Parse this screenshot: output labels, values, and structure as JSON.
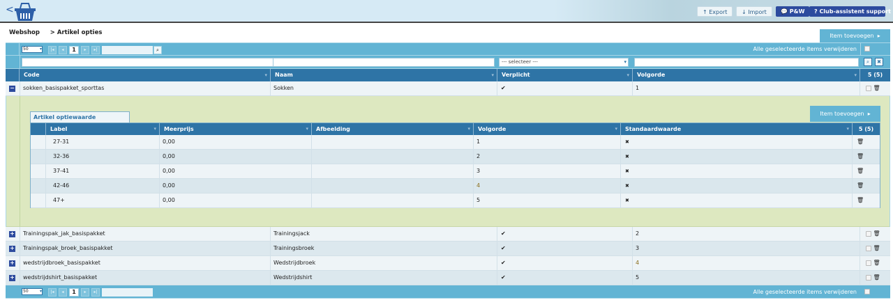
{
  "header": {
    "back": "<",
    "export": "Export",
    "import": "Import",
    "pw": "P&W",
    "support": "Club-assistent support"
  },
  "breadcrumb": {
    "root": "Webshop",
    "sep": ">",
    "current": "Artikel opties"
  },
  "add_item": "Item toevoegen",
  "toolbar": {
    "page_size": "50",
    "page": "1",
    "delete_selected": "Alle geselecteerde items verwijderen"
  },
  "filter": {
    "select_placeholder": "--- selecteer ---"
  },
  "columns": [
    "Code",
    "Naam",
    "Verplicht",
    "Volgorde"
  ],
  "count": "5 (5)",
  "rows": [
    {
      "code": "sokken_basispakket_sporttas",
      "naam": "Sokken",
      "verplicht": "✔",
      "volgorde": "1",
      "expanded": true
    },
    {
      "code": "Trainingspak_jak_basispakket",
      "naam": "Trainingsjack",
      "verplicht": "✔",
      "volgorde": "2"
    },
    {
      "code": "Trainingspak_broek_basispakket",
      "naam": "Trainingsbroek",
      "verplicht": "✔",
      "volgorde": "3"
    },
    {
      "code": "wedstrijdbroek_basispakket",
      "naam": "Wedstrijdbroek",
      "verplicht": "✔",
      "volgorde": "4"
    },
    {
      "code": "wedstrijdshirt_basispakket",
      "naam": "Wedstrijdshirt",
      "verplicht": "✔",
      "volgorde": "5"
    }
  ],
  "sub": {
    "tab": "Artikel optiewaarde",
    "add_item": "Item toevoegen",
    "columns": [
      "Label",
      "Meerprijs",
      "Afbeelding",
      "Volgorde",
      "Standaardwaarde"
    ],
    "count": "5 (5)",
    "rows": [
      {
        "label": "27-31",
        "meerprijs": "0,00",
        "afbeelding": "",
        "volgorde": "1",
        "standaard": "✖"
      },
      {
        "label": "32-36",
        "meerprijs": "0,00",
        "afbeelding": "",
        "volgorde": "2",
        "standaard": "✖"
      },
      {
        "label": "37-41",
        "meerprijs": "0,00",
        "afbeelding": "",
        "volgorde": "3",
        "standaard": "✖"
      },
      {
        "label": "42-46",
        "meerprijs": "0,00",
        "afbeelding": "",
        "volgorde": "4",
        "standaard": "✖"
      },
      {
        "label": "47+",
        "meerprijs": "0,00",
        "afbeelding": "",
        "volgorde": "5",
        "standaard": "✖"
      }
    ]
  },
  "colors": {
    "header_blue": "#2e74a6",
    "bar_blue": "#62b4d4",
    "nav_dark": "#2d4b9e",
    "detail_bg": "#dde8c0"
  }
}
